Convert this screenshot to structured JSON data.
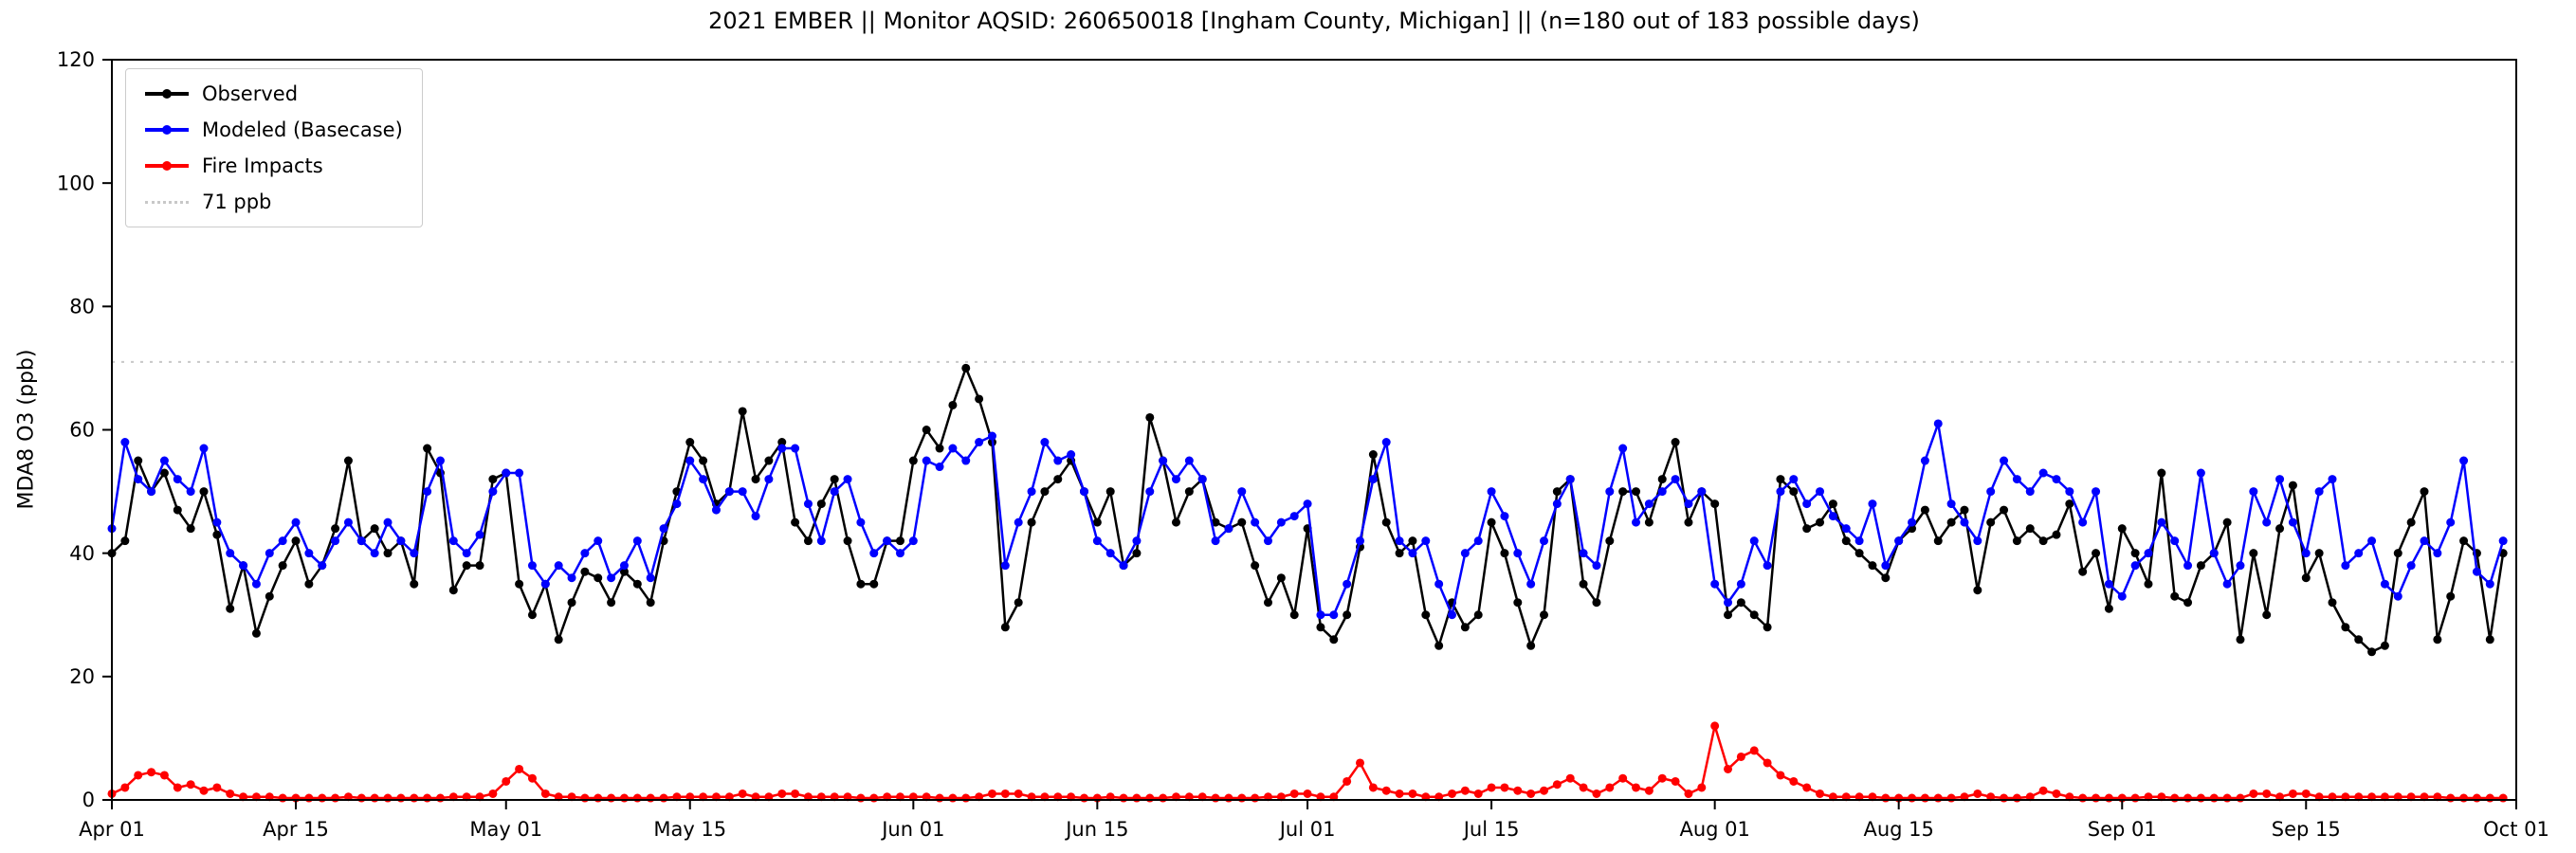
{
  "chart": {
    "title": "2021 EMBER || Monitor AQSID: 260650018 [Ingham County, Michigan] || (n=180 out of 183 possible days)",
    "ylabel": "MDA8 O3 (ppb)",
    "xlabel": "",
    "ylim": [
      0,
      120
    ],
    "y_ticks": [
      0,
      20,
      40,
      60,
      80,
      100,
      120
    ],
    "x_tick_labels": [
      "Apr 01",
      "Apr 15",
      "May 01",
      "May 15",
      "Jun 01",
      "Jun 15",
      "Jul 01",
      "Jul 15",
      "Aug 01",
      "Aug 15",
      "Sep 01",
      "Sep 15",
      "Oct 01"
    ],
    "x_tick_days": [
      0,
      14,
      30,
      44,
      61,
      75,
      91,
      105,
      122,
      136,
      153,
      167,
      183
    ],
    "grid": false,
    "legend_position": "upper-left",
    "reference_line": {
      "value": 71,
      "label": "71 ppb",
      "color": "#c8c8c8",
      "style": "dotted"
    },
    "legend": [
      {
        "label": "Observed",
        "color": "#000000",
        "dotted": false
      },
      {
        "label": "Modeled (Basecase)",
        "color": "#0000ff",
        "dotted": false
      },
      {
        "label": "Fire Impacts",
        "color": "#ff0000",
        "dotted": false
      },
      {
        "label": "71 ppb",
        "color": "#c8c8c8",
        "dotted": true
      }
    ]
  },
  "chart_data": {
    "type": "line",
    "x_start": "Apr 01",
    "x_end": "Oct 01",
    "x_days": 183,
    "x_unit": "day index from Apr 01 (2021)",
    "ylim": [
      0,
      120
    ],
    "series": [
      {
        "name": "Observed",
        "color": "#000000",
        "values": [
          40,
          42,
          55,
          50,
          53,
          47,
          44,
          50,
          43,
          31,
          38,
          27,
          33,
          38,
          42,
          35,
          38,
          44,
          55,
          42,
          44,
          40,
          42,
          35,
          57,
          53,
          34,
          38,
          38,
          52,
          53,
          35,
          30,
          35,
          26,
          32,
          37,
          36,
          32,
          37,
          35,
          32,
          42,
          50,
          58,
          55,
          48,
          50,
          63,
          52,
          55,
          58,
          45,
          42,
          48,
          52,
          42,
          35,
          35,
          42,
          42,
          55,
          60,
          57,
          64,
          70,
          65,
          58,
          28,
          32,
          45,
          50,
          52,
          55,
          50,
          45,
          50,
          38,
          40,
          62,
          55,
          45,
          50,
          52,
          45,
          44,
          45,
          38,
          32,
          36,
          30,
          44,
          28,
          26,
          30,
          41,
          56,
          45,
          40,
          42,
          30,
          25,
          32,
          28,
          30,
          45,
          40,
          32,
          25,
          30,
          50,
          52,
          35,
          32,
          42,
          50,
          50,
          45,
          52,
          58,
          45,
          50,
          48,
          30,
          32,
          30,
          28,
          52,
          50,
          44,
          45,
          48,
          42,
          40,
          38,
          36,
          42,
          44,
          47,
          42,
          45,
          47,
          34,
          45,
          47,
          42,
          44,
          42,
          43,
          48,
          37,
          40,
          31,
          44,
          40,
          35,
          53,
          33,
          32,
          38,
          40,
          45,
          26,
          40,
          30,
          44,
          51,
          36,
          40,
          32,
          28,
          26,
          24,
          25,
          40,
          45,
          50,
          26,
          33,
          42,
          40,
          26,
          40
        ]
      },
      {
        "name": "Modeled (Basecase)",
        "color": "#0000ff",
        "values": [
          44,
          58,
          52,
          50,
          55,
          52,
          50,
          57,
          45,
          40,
          38,
          35,
          40,
          42,
          45,
          40,
          38,
          42,
          45,
          42,
          40,
          45,
          42,
          40,
          50,
          55,
          42,
          40,
          43,
          50,
          53,
          53,
          38,
          35,
          38,
          36,
          40,
          42,
          36,
          38,
          42,
          36,
          44,
          48,
          55,
          52,
          47,
          50,
          50,
          46,
          52,
          57,
          57,
          48,
          42,
          50,
          52,
          45,
          40,
          42,
          40,
          42,
          55,
          54,
          57,
          55,
          58,
          59,
          38,
          45,
          50,
          58,
          55,
          56,
          50,
          42,
          40,
          38,
          42,
          50,
          55,
          52,
          55,
          52,
          42,
          44,
          50,
          45,
          42,
          45,
          46,
          48,
          30,
          30,
          35,
          42,
          52,
          58,
          42,
          40,
          42,
          35,
          30,
          40,
          42,
          50,
          46,
          40,
          35,
          42,
          48,
          52,
          40,
          38,
          50,
          57,
          45,
          48,
          50,
          52,
          48,
          50,
          35,
          32,
          35,
          42,
          38,
          50,
          52,
          48,
          50,
          46,
          44,
          42,
          48,
          38,
          42,
          45,
          55,
          61,
          48,
          45,
          42,
          50,
          55,
          52,
          50,
          53,
          52,
          50,
          45,
          50,
          35,
          33,
          38,
          40,
          45,
          42,
          38,
          53,
          40,
          35,
          38,
          50,
          45,
          52,
          45,
          40,
          50,
          52,
          38,
          40,
          42,
          35,
          33,
          38,
          42,
          40,
          45,
          55,
          37,
          35,
          42
        ]
      },
      {
        "name": "Fire Impacts",
        "color": "#ff0000",
        "values": [
          1,
          2,
          4,
          4.5,
          4,
          2,
          2.5,
          1.5,
          2,
          1,
          0.5,
          0.5,
          0.5,
          0.3,
          0.3,
          0.3,
          0.3,
          0.3,
          0.5,
          0.3,
          0.3,
          0.3,
          0.3,
          0.3,
          0.3,
          0.3,
          0.5,
          0.5,
          0.5,
          1,
          3,
          5,
          3.5,
          1,
          0.5,
          0.5,
          0.3,
          0.3,
          0.3,
          0.3,
          0.3,
          0.3,
          0.3,
          0.5,
          0.5,
          0.5,
          0.5,
          0.5,
          1,
          0.5,
          0.5,
          1,
          1,
          0.5,
          0.5,
          0.5,
          0.5,
          0.3,
          0.3,
          0.5,
          0.5,
          0.5,
          0.5,
          0.3,
          0.3,
          0.3,
          0.5,
          1,
          1,
          1,
          0.5,
          0.5,
          0.5,
          0.5,
          0.3,
          0.3,
          0.5,
          0.3,
          0.3,
          0.3,
          0.3,
          0.5,
          0.5,
          0.5,
          0.3,
          0.3,
          0.3,
          0.3,
          0.5,
          0.5,
          1,
          1,
          0.5,
          0.5,
          3,
          6,
          2,
          1.5,
          1,
          1,
          0.5,
          0.5,
          1,
          1.5,
          1,
          2,
          2,
          1.5,
          1,
          1.5,
          2.5,
          3.5,
          2,
          1,
          2,
          3.5,
          2,
          1.5,
          3.5,
          3,
          1,
          2,
          12,
          5,
          7,
          8,
          6,
          4,
          3,
          2,
          1,
          0.5,
          0.5,
          0.5,
          0.5,
          0.3,
          0.3,
          0.3,
          0.3,
          0.3,
          0.3,
          0.5,
          1,
          0.5,
          0.3,
          0.3,
          0.5,
          1.5,
          1,
          0.5,
          0.3,
          0.3,
          0.3,
          0.3,
          0.3,
          0.5,
          0.5,
          0.3,
          0.3,
          0.3,
          0.3,
          0.3,
          0.3,
          1,
          1,
          0.5,
          1,
          1,
          0.5,
          0.5,
          0.5,
          0.5,
          0.5,
          0.5,
          0.5,
          0.5,
          0.5,
          0.5,
          0.3,
          0.3,
          0.3,
          0.3,
          0.3
        ]
      }
    ]
  }
}
